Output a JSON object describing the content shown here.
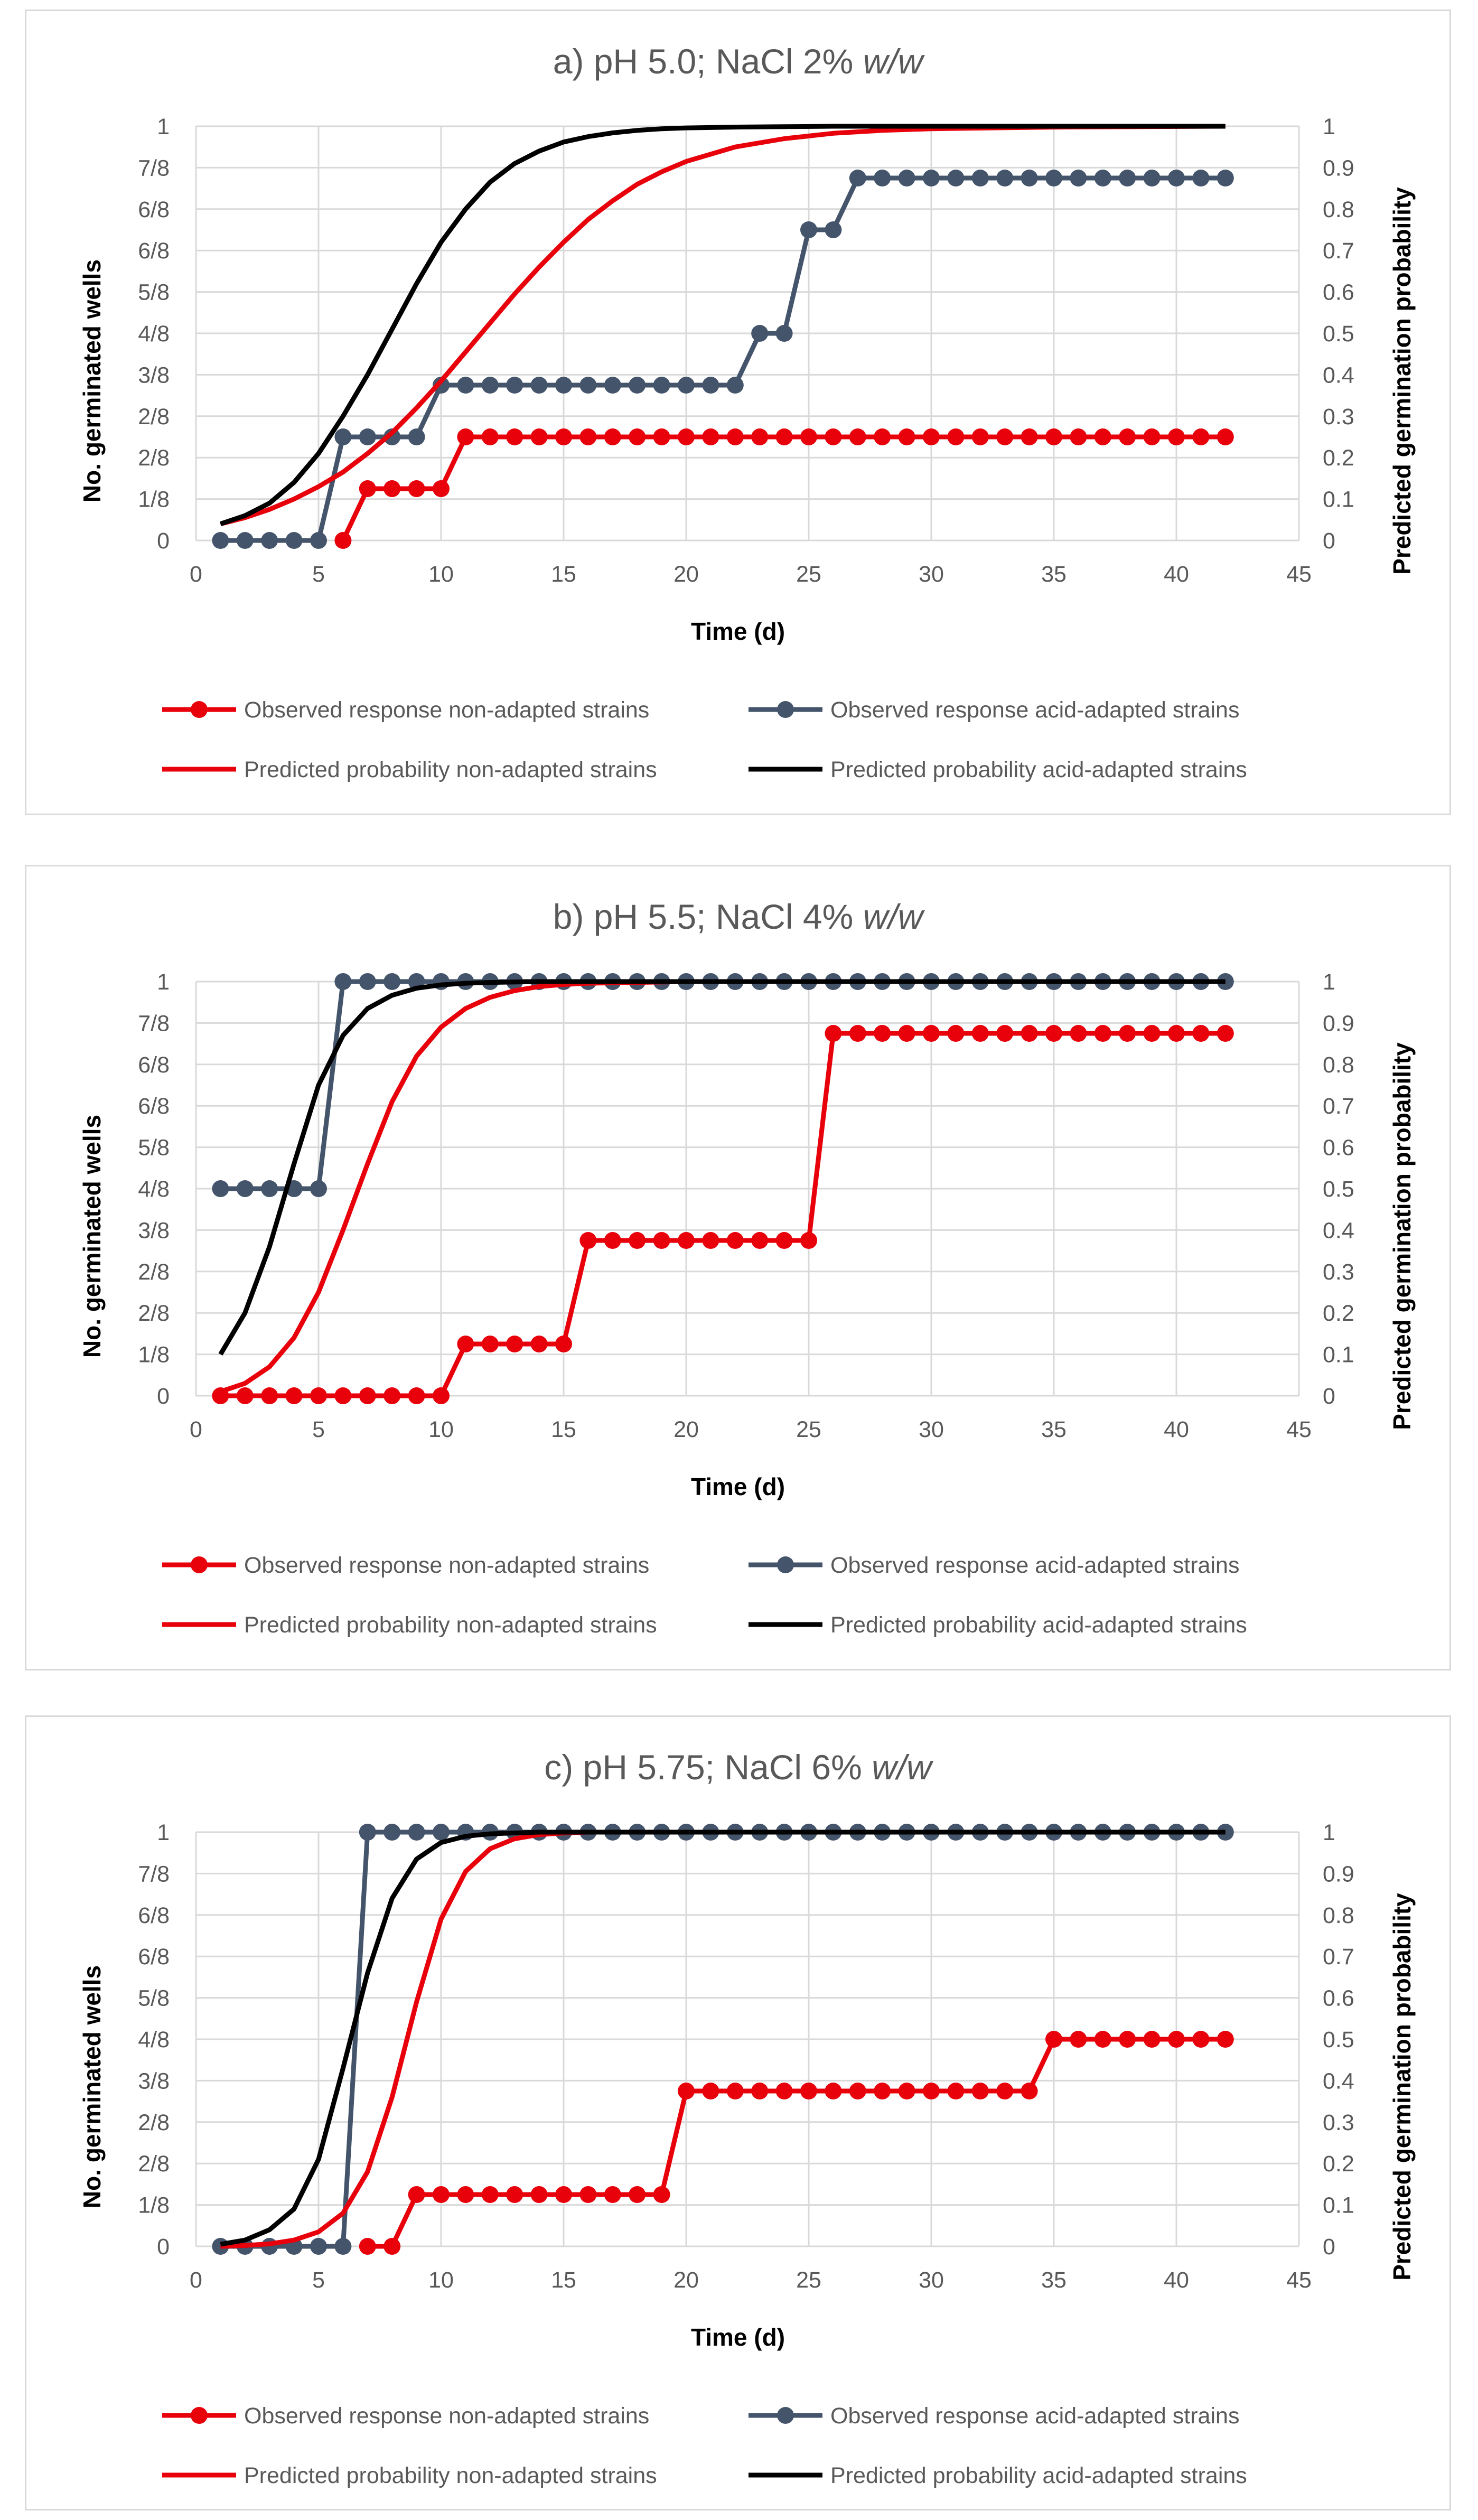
{
  "chart_data": [
    {
      "type": "line",
      "title_prefix": "a) pH 5.0; NaCl 2% ",
      "title_italic": "w/w",
      "xlabel": "Time (d)",
      "ylabel_left": "No. germinated wells",
      "ylabel_right": "Predicted germination probability",
      "xlim": [
        0,
        45
      ],
      "ylim": [
        0,
        1
      ],
      "xticks": [
        "0",
        "5",
        "10",
        "15",
        "20",
        "25",
        "30",
        "35",
        "40",
        "45"
      ],
      "yticks_left": [
        "0",
        "1/8",
        "2/8",
        "2/8",
        "3/8",
        "4/8",
        "5/8",
        "6/8",
        "6/8",
        "7/8",
        "1"
      ],
      "yticks_right": [
        "0",
        "0.1",
        "0.2",
        "0.3",
        "0.4",
        "0.5",
        "0.6",
        "0.7",
        "0.8",
        "0.9",
        "1"
      ],
      "legend": [
        "Observed response non-adapted strains",
        "Observed response acid-adapted strains",
        "Predicted probability non-adapted strains",
        "Predicted probability acid-adapted strains"
      ],
      "series": [
        {
          "name": "Observed response non-adapted strains",
          "color": "#e8000b",
          "markers": true,
          "x": [
            6,
            7,
            8,
            9,
            10,
            11,
            12,
            13,
            14,
            15,
            16,
            17,
            18,
            19,
            20,
            21,
            22,
            23,
            24,
            25,
            26,
            27,
            28,
            29,
            30,
            31,
            32,
            33,
            34,
            35,
            36,
            37,
            38,
            39,
            40,
            41,
            42
          ],
          "y": [
            0,
            0.125,
            0.125,
            0.125,
            0.125,
            0.25,
            0.25,
            0.25,
            0.25,
            0.25,
            0.25,
            0.25,
            0.25,
            0.25,
            0.25,
            0.25,
            0.25,
            0.25,
            0.25,
            0.25,
            0.25,
            0.25,
            0.25,
            0.25,
            0.25,
            0.25,
            0.25,
            0.25,
            0.25,
            0.25,
            0.25,
            0.25,
            0.25,
            0.25,
            0.25,
            0.25,
            0.25
          ]
        },
        {
          "name": "Observed response acid-adapted strains",
          "color": "#44546a",
          "markers": true,
          "x": [
            1,
            2,
            3,
            4,
            5,
            6,
            7,
            8,
            9,
            10,
            11,
            12,
            13,
            14,
            15,
            16,
            17,
            18,
            19,
            20,
            21,
            22,
            23,
            24,
            25,
            26,
            27,
            28,
            29,
            30,
            31,
            32,
            33,
            34,
            35,
            36,
            37,
            38,
            39,
            40,
            41,
            42
          ],
          "y": [
            0,
            0,
            0,
            0,
            0,
            0.25,
            0.25,
            0.25,
            0.25,
            0.375,
            0.375,
            0.375,
            0.375,
            0.375,
            0.375,
            0.375,
            0.375,
            0.375,
            0.375,
            0.375,
            0.375,
            0.375,
            0.5,
            0.5,
            0.75,
            0.75,
            0.875,
            0.875,
            0.875,
            0.875,
            0.875,
            0.875,
            0.875,
            0.875,
            0.875,
            0.875,
            0.875,
            0.875,
            0.875,
            0.875,
            0.875,
            0.875
          ]
        },
        {
          "name": "Predicted probability non-adapted strains",
          "color": "#e8000b",
          "markers": false,
          "x": [
            1,
            2,
            3,
            4,
            5,
            6,
            7,
            8,
            9,
            10,
            11,
            12,
            13,
            14,
            15,
            16,
            17,
            18,
            19,
            20,
            22,
            24,
            26,
            28,
            30,
            35,
            42
          ],
          "y": [
            0.04,
            0.055,
            0.075,
            0.1,
            0.13,
            0.165,
            0.21,
            0.26,
            0.32,
            0.385,
            0.455,
            0.525,
            0.595,
            0.66,
            0.72,
            0.775,
            0.82,
            0.86,
            0.89,
            0.915,
            0.95,
            0.97,
            0.983,
            0.99,
            0.994,
            0.998,
            1.0
          ]
        },
        {
          "name": "Predicted probability acid-adapted strains",
          "color": "#000000",
          "markers": false,
          "x": [
            1,
            2,
            3,
            4,
            5,
            6,
            7,
            8,
            9,
            10,
            11,
            12,
            13,
            14,
            15,
            16,
            17,
            18,
            19,
            20,
            22,
            24,
            26,
            30,
            42
          ],
          "y": [
            0.04,
            0.06,
            0.09,
            0.14,
            0.21,
            0.3,
            0.4,
            0.51,
            0.62,
            0.72,
            0.8,
            0.865,
            0.91,
            0.94,
            0.962,
            0.975,
            0.984,
            0.99,
            0.994,
            0.996,
            0.998,
            0.999,
            1.0,
            1.0,
            1.0
          ]
        }
      ]
    },
    {
      "type": "line",
      "title_prefix": "b) pH 5.5; NaCl 4% ",
      "title_italic": "w/w",
      "xlabel": "Time (d)",
      "ylabel_left": "No. germinated wells",
      "ylabel_right": "Predicted germination probability",
      "xlim": [
        0,
        45
      ],
      "ylim": [
        0,
        1
      ],
      "xticks": [
        "0",
        "5",
        "10",
        "15",
        "20",
        "25",
        "30",
        "35",
        "40",
        "45"
      ],
      "yticks_left": [
        "0",
        "1/8",
        "2/8",
        "2/8",
        "3/8",
        "4/8",
        "5/8",
        "6/8",
        "6/8",
        "7/8",
        "1"
      ],
      "yticks_right": [
        "0",
        "0.1",
        "0.2",
        "0.3",
        "0.4",
        "0.5",
        "0.6",
        "0.7",
        "0.8",
        "0.9",
        "1"
      ],
      "legend": [
        "Observed response non-adapted strains",
        "Observed response acid-adapted strains",
        "Predicted probability non-adapted strains",
        "Predicted probability acid-adapted strains"
      ],
      "series": [
        {
          "name": "Observed response non-adapted strains",
          "color": "#e8000b",
          "markers": true,
          "x": [
            1,
            2,
            3,
            4,
            5,
            6,
            7,
            8,
            9,
            10,
            11,
            12,
            13,
            14,
            15,
            16,
            17,
            18,
            19,
            20,
            21,
            22,
            23,
            24,
            25,
            26,
            27,
            28,
            29,
            30,
            31,
            32,
            33,
            34,
            35,
            36,
            37,
            38,
            39,
            40,
            41,
            42
          ],
          "y": [
            0,
            0,
            0,
            0,
            0,
            0,
            0,
            0,
            0,
            0,
            0.125,
            0.125,
            0.125,
            0.125,
            0.125,
            0.375,
            0.375,
            0.375,
            0.375,
            0.375,
            0.375,
            0.375,
            0.375,
            0.375,
            0.375,
            0.875,
            0.875,
            0.875,
            0.875,
            0.875,
            0.875,
            0.875,
            0.875,
            0.875,
            0.875,
            0.875,
            0.875,
            0.875,
            0.875,
            0.875,
            0.875,
            0.875
          ]
        },
        {
          "name": "Observed response acid-adapted strains",
          "color": "#44546a",
          "markers": true,
          "x": [
            1,
            2,
            3,
            4,
            5,
            6,
            7,
            8,
            9,
            10,
            11,
            12,
            13,
            14,
            15,
            16,
            17,
            18,
            19,
            20,
            21,
            22,
            23,
            24,
            25,
            26,
            27,
            28,
            29,
            30,
            31,
            32,
            33,
            34,
            35,
            36,
            37,
            38,
            39,
            40,
            41,
            42
          ],
          "y": [
            0.5,
            0.5,
            0.5,
            0.5,
            0.5,
            1,
            1,
            1,
            1,
            1,
            1,
            1,
            1,
            1,
            1,
            1,
            1,
            1,
            1,
            1,
            1,
            1,
            1,
            1,
            1,
            1,
            1,
            1,
            1,
            1,
            1,
            1,
            1,
            1,
            1,
            1,
            1,
            1,
            1,
            1,
            1,
            1
          ]
        },
        {
          "name": "Predicted probability non-adapted strains",
          "color": "#e8000b",
          "markers": false,
          "x": [
            1,
            2,
            3,
            4,
            5,
            6,
            7,
            8,
            9,
            10,
            11,
            12,
            13,
            14,
            15,
            16,
            18,
            20,
            25,
            30,
            42
          ],
          "y": [
            0.01,
            0.03,
            0.07,
            0.14,
            0.25,
            0.4,
            0.56,
            0.71,
            0.82,
            0.89,
            0.935,
            0.962,
            0.978,
            0.988,
            0.993,
            0.996,
            0.998,
            1.0,
            1.0,
            1.0,
            1.0
          ]
        },
        {
          "name": "Predicted probability acid-adapted strains",
          "color": "#000000",
          "markers": false,
          "x": [
            1,
            2,
            3,
            4,
            5,
            6,
            7,
            8,
            9,
            10,
            11,
            12,
            14,
            16,
            20,
            30,
            42
          ],
          "y": [
            0.1,
            0.2,
            0.36,
            0.56,
            0.75,
            0.87,
            0.935,
            0.967,
            0.984,
            0.992,
            0.996,
            0.998,
            1.0,
            1.0,
            1.0,
            1.0,
            1.0
          ]
        }
      ]
    },
    {
      "type": "line",
      "title_prefix": "c) pH 5.75; NaCl 6% ",
      "title_italic": "w/w",
      "xlabel": "Time (d)",
      "ylabel_left": "No. germinated wells",
      "ylabel_right": "Predicted germination probability",
      "xlim": [
        0,
        45
      ],
      "ylim": [
        0,
        1
      ],
      "xticks": [
        "0",
        "5",
        "10",
        "15",
        "20",
        "25",
        "30",
        "35",
        "40",
        "45"
      ],
      "yticks_left": [
        "0",
        "1/8",
        "2/8",
        "2/8",
        "3/8",
        "4/8",
        "5/8",
        "6/8",
        "6/8",
        "7/8",
        "1"
      ],
      "yticks_right": [
        "0",
        "0.1",
        "0.2",
        "0.3",
        "0.4",
        "0.5",
        "0.6",
        "0.7",
        "0.8",
        "0.9",
        "1"
      ],
      "legend": [
        "Observed response non-adapted strains",
        "Observed response acid-adapted strains",
        "Predicted probability non-adapted strains",
        "Predicted probability acid-adapted strains"
      ],
      "series": [
        {
          "name": "Observed response non-adapted strains",
          "color": "#e8000b",
          "markers": true,
          "x": [
            7,
            8,
            9,
            10,
            11,
            12,
            13,
            14,
            15,
            16,
            17,
            18,
            19,
            20,
            21,
            22,
            23,
            24,
            25,
            26,
            27,
            28,
            29,
            30,
            31,
            32,
            33,
            34,
            35,
            36,
            37,
            38,
            39,
            40,
            41,
            42
          ],
          "y": [
            0,
            0,
            0.125,
            0.125,
            0.125,
            0.125,
            0.125,
            0.125,
            0.125,
            0.125,
            0.125,
            0.125,
            0.125,
            0.375,
            0.375,
            0.375,
            0.375,
            0.375,
            0.375,
            0.375,
            0.375,
            0.375,
            0.375,
            0.375,
            0.375,
            0.375,
            0.375,
            0.375,
            0.5,
            0.5,
            0.5,
            0.5,
            0.5,
            0.5,
            0.5,
            0.5
          ]
        },
        {
          "name": "Observed response acid-adapted strains",
          "color": "#44546a",
          "markers": true,
          "x": [
            1,
            2,
            3,
            4,
            5,
            6,
            7,
            8,
            9,
            10,
            11,
            12,
            13,
            14,
            15,
            16,
            17,
            18,
            19,
            20,
            21,
            22,
            23,
            24,
            25,
            26,
            27,
            28,
            29,
            30,
            31,
            32,
            33,
            34,
            35,
            36,
            37,
            38,
            39,
            40,
            41,
            42
          ],
          "y": [
            0,
            0,
            0,
            0,
            0,
            0,
            1,
            1,
            1,
            1,
            1,
            1,
            1,
            1,
            1,
            1,
            1,
            1,
            1,
            1,
            1,
            1,
            1,
            1,
            1,
            1,
            1,
            1,
            1,
            1,
            1,
            1,
            1,
            1,
            1,
            1,
            1,
            1,
            1,
            1,
            1,
            1
          ]
        },
        {
          "name": "Predicted probability non-adapted strains",
          "color": "#e8000b",
          "markers": false,
          "x": [
            1,
            2,
            3,
            4,
            5,
            6,
            7,
            8,
            9,
            10,
            11,
            12,
            13,
            14,
            15,
            16,
            18,
            20,
            30,
            42
          ],
          "y": [
            0,
            0.002,
            0.006,
            0.015,
            0.035,
            0.08,
            0.18,
            0.36,
            0.59,
            0.79,
            0.905,
            0.96,
            0.984,
            0.994,
            0.998,
            1.0,
            1.0,
            1.0,
            1.0,
            1.0
          ]
        },
        {
          "name": "Predicted probability acid-adapted strains",
          "color": "#000000",
          "markers": false,
          "x": [
            1,
            2,
            3,
            4,
            5,
            6,
            7,
            8,
            9,
            10,
            11,
            12,
            14,
            16,
            20,
            30,
            42
          ],
          "y": [
            0.005,
            0.015,
            0.04,
            0.09,
            0.21,
            0.43,
            0.66,
            0.84,
            0.935,
            0.975,
            0.99,
            0.996,
            1.0,
            1.0,
            1.0,
            1.0,
            1.0
          ]
        }
      ]
    }
  ]
}
